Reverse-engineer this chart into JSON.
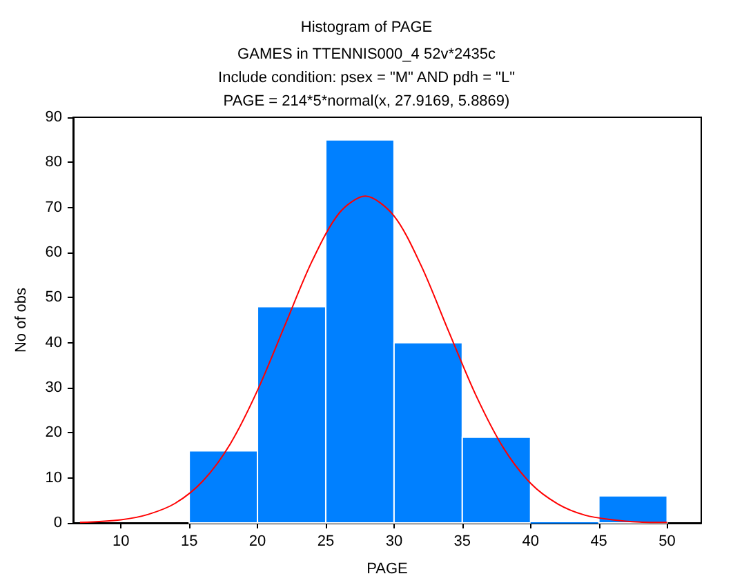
{
  "chart_data": {
    "type": "histogram",
    "title": "Histogram of PAGE",
    "subtitle": "GAMES in TTENNIS000_4 52v*2435c\nInclude condition: psex = \"M\" AND pdh = \"L\"\nPAGE = 214*5*normal(x, 27.9169, 5.8869)",
    "xlabel": "PAGE",
    "ylabel": "No of obs",
    "bins": [
      15,
      20,
      25,
      30,
      35,
      40,
      45,
      50
    ],
    "values": [
      16,
      48,
      85,
      40,
      19,
      0,
      6
    ],
    "color": "#0080ff",
    "series": [
      {
        "type": "line",
        "color": "#ff0000",
        "x": [
          7,
          10,
          12,
          14,
          16,
          18,
          20,
          22,
          24,
          26,
          27.9,
          30,
          32,
          34,
          36,
          38,
          40,
          42,
          44,
          46,
          48,
          50
        ],
        "values": [
          0.1,
          0.7,
          1.9,
          4.4,
          9.3,
          17.5,
          29.4,
          43.8,
          58.1,
          68.8,
          72.5,
          68.1,
          57.0,
          42.5,
          28.3,
          16.7,
          8.8,
          4.2,
          1.7,
          0.7,
          0.2,
          0.1
        ]
      }
    ],
    "marker": "none",
    "xlim": [
      6.5,
      52.5
    ],
    "xticks": [
      10,
      15,
      20,
      25,
      30,
      35,
      40,
      45,
      50
    ],
    "ylim": [
      0,
      90
    ],
    "yticks": [
      0,
      10,
      20,
      30,
      40,
      50,
      60,
      70,
      80,
      90
    ]
  }
}
